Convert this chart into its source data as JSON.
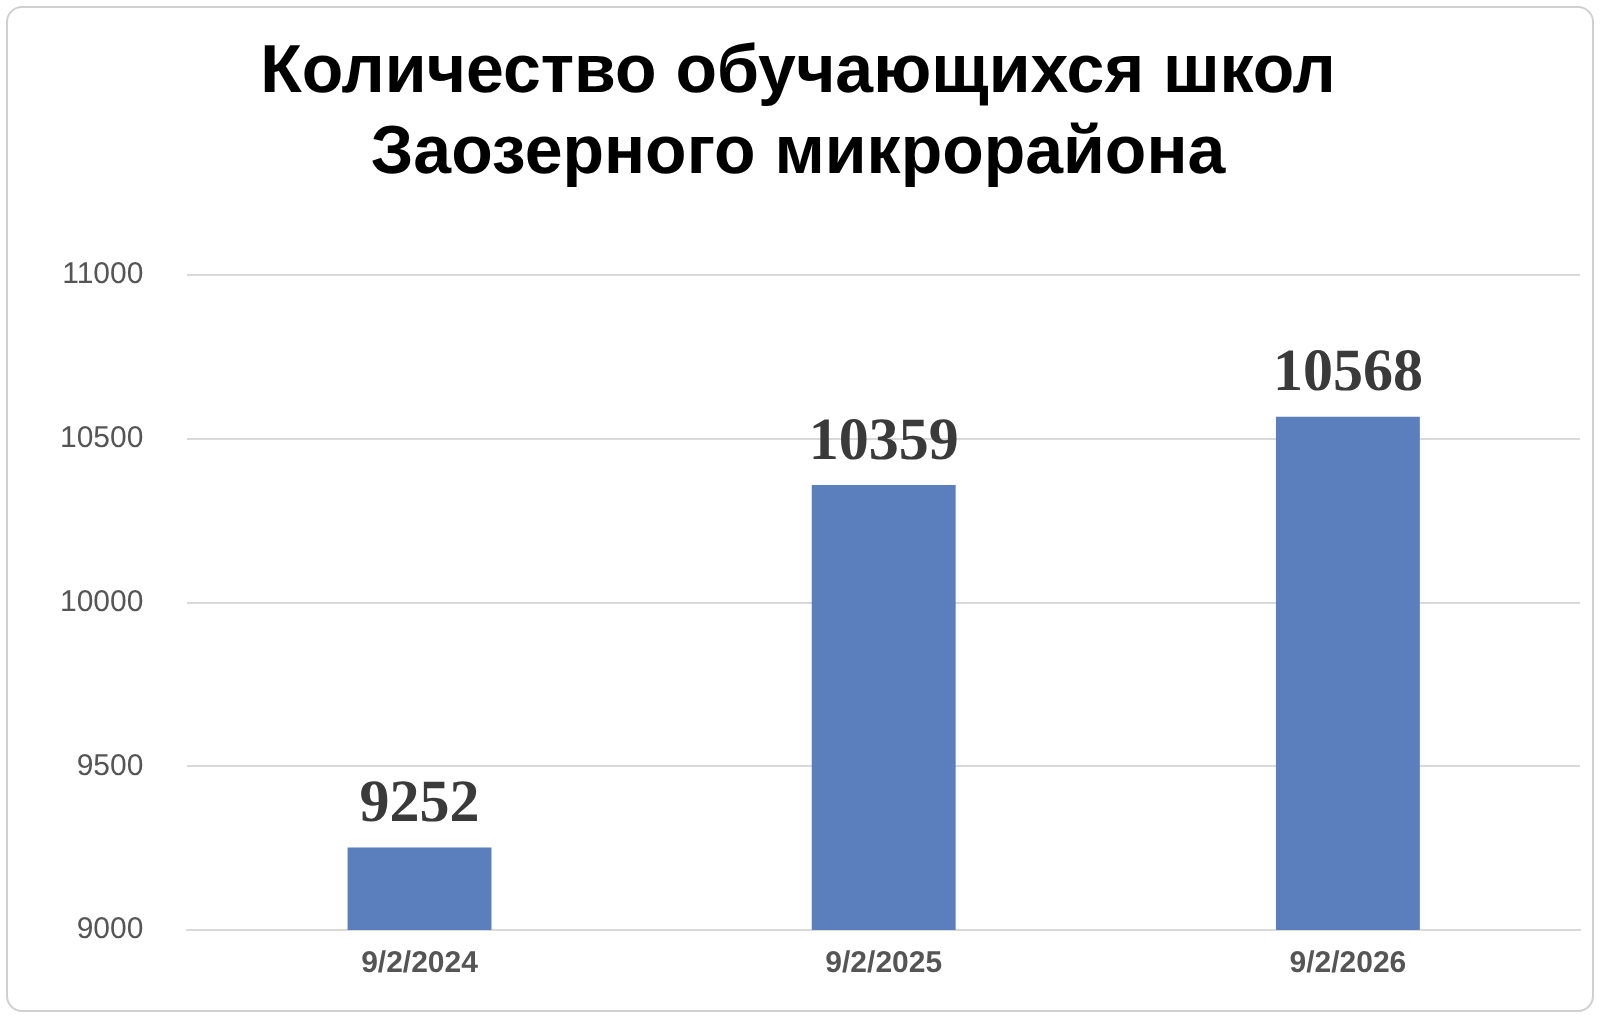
{
  "chart_data": {
    "type": "bar",
    "title": "Количество обучающихся школ Заозерного микрорайона",
    "categories": [
      "9/2/2024",
      "9/2/2025",
      "9/2/2026"
    ],
    "values": [
      9252,
      10359,
      10568
    ],
    "color": "#5a7fbc",
    "ylim": [
      9000,
      11000
    ],
    "yticks": [
      9000,
      9500,
      10000,
      10500,
      11000
    ],
    "grid": "y",
    "data_labels": true,
    "legend": false
  }
}
